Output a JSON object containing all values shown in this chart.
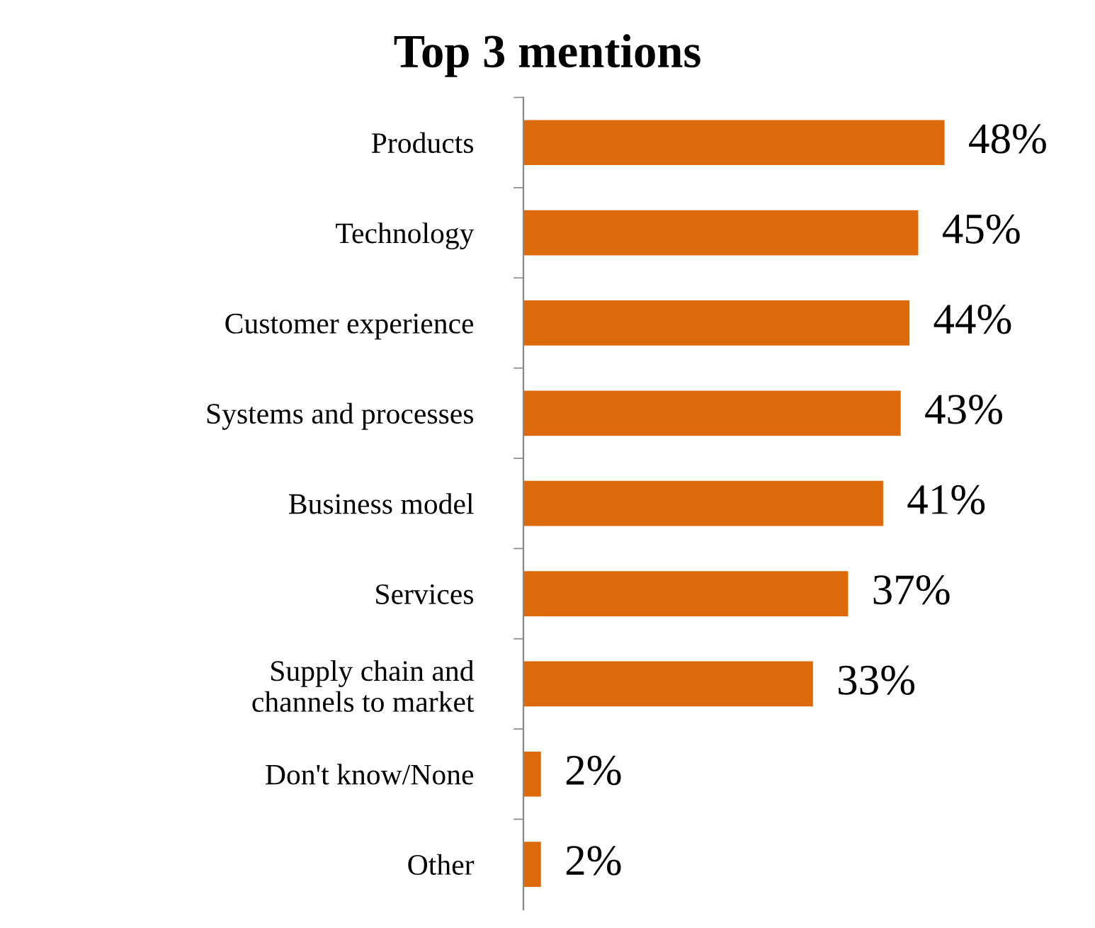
{
  "chart_data": {
    "type": "bar",
    "orientation": "horizontal",
    "title": "Top 3 mentions",
    "categories": [
      "Products",
      "Technology",
      "Customer experience",
      "Systems and processes",
      "Business model",
      "Services",
      "Supply chain and\nchannels to market",
      "Don't know/None",
      "Other"
    ],
    "values": [
      48,
      45,
      44,
      43,
      41,
      37,
      33,
      2,
      2
    ],
    "value_labels": [
      "48%",
      "45%",
      "44%",
      "43%",
      "41%",
      "37%",
      "33%",
      "2%",
      "2%"
    ],
    "color": "#dd6a0a",
    "tick_labels": "y",
    "grid": false,
    "legend": false
  }
}
